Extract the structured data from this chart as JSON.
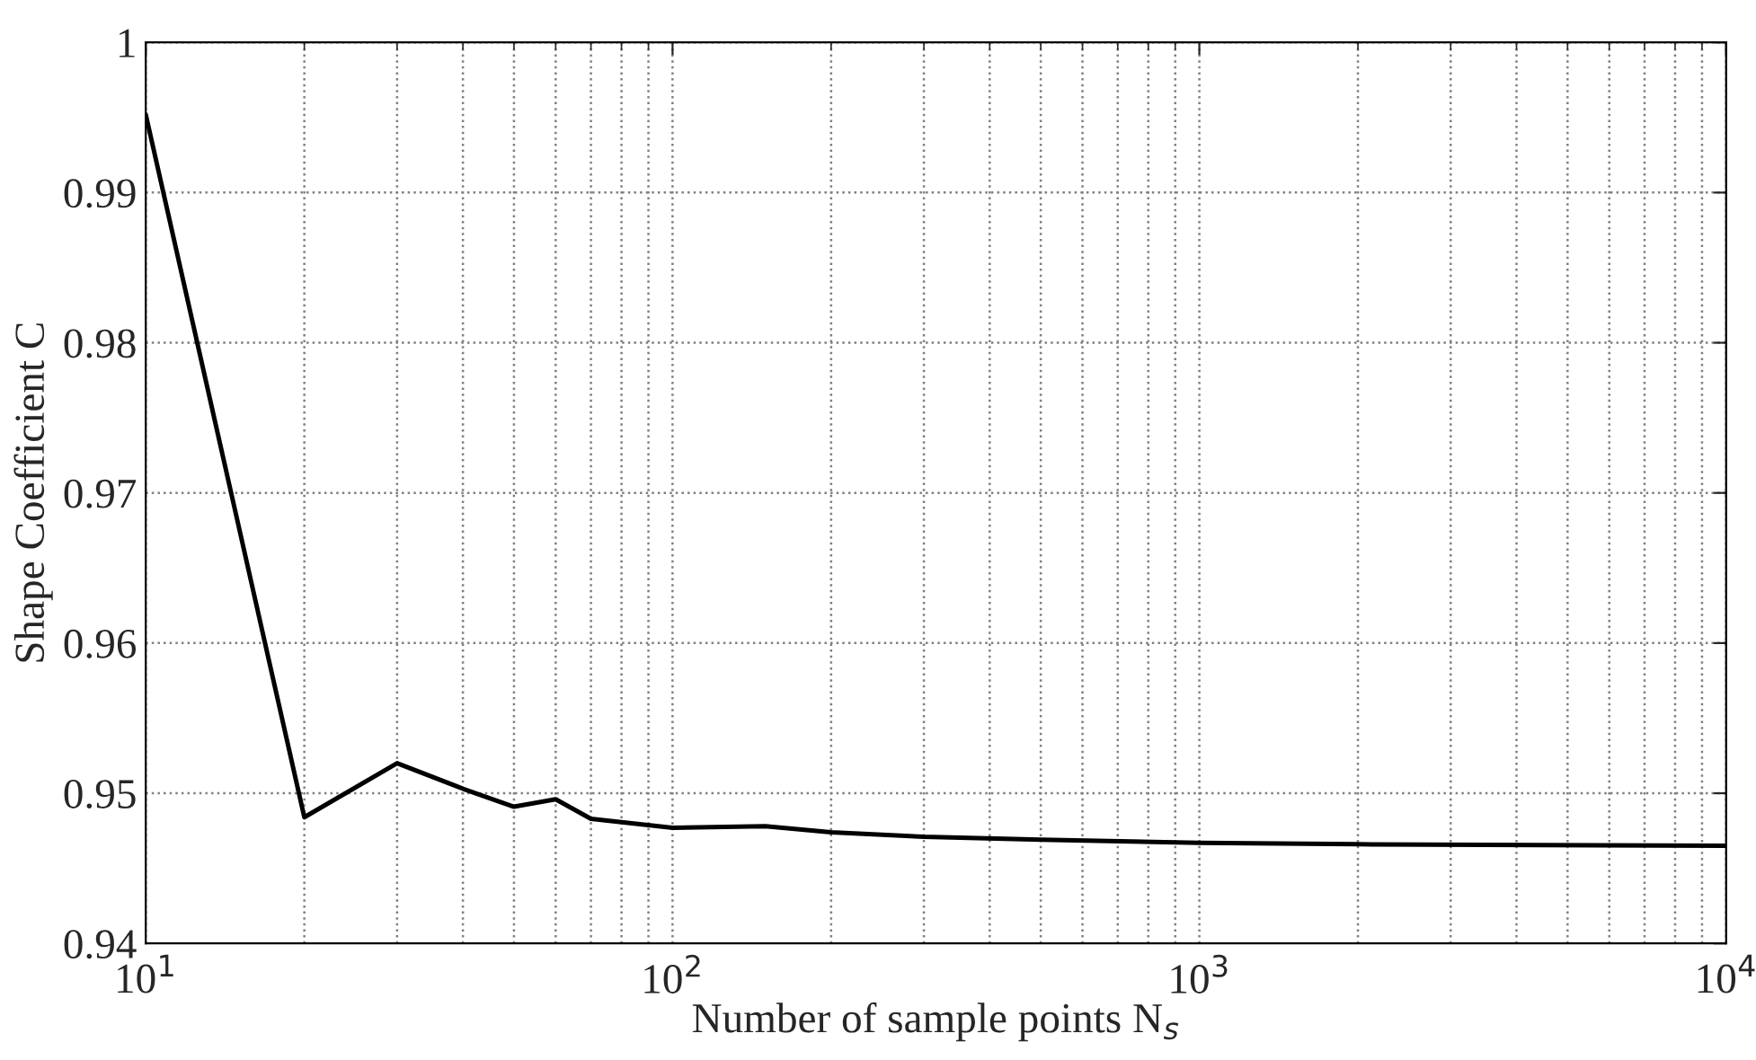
{
  "chart_data": {
    "type": "line",
    "xlabel": "Number of sample points N$_{s}$",
    "ylabel": "Shape Coefficient C",
    "log": "x",
    "series": [
      {
        "color": "#000000",
        "x": [
          10,
          20,
          30,
          40,
          50,
          60,
          70,
          100,
          150,
          200,
          300,
          500,
          1000,
          2000,
          10000
        ],
        "values": [
          0.9952,
          0.9484,
          0.952,
          0.9503,
          0.9491,
          0.9496,
          0.9483,
          0.9477,
          0.9478,
          0.9474,
          0.9471,
          0.9469,
          0.9467,
          0.9466,
          0.9465
        ]
      }
    ],
    "xlim": [
      10,
      10000
    ],
    "xticks": [
      {
        "value": 10,
        "label": "10$^{1}$"
      },
      {
        "value": 100,
        "label": "10$^{2}$"
      },
      {
        "value": 1000,
        "label": "10$^{3}$"
      },
      {
        "value": 10000,
        "label": "10$^{4}$"
      }
    ],
    "ylim": [
      0.94,
      1
    ],
    "yticks": [
      0.94,
      0.95,
      0.96,
      0.97,
      0.98,
      0.99,
      {
        "value": 1,
        "label": "1"
      }
    ],
    "grid": true,
    "line_style": "solid",
    "marker": "none"
  }
}
